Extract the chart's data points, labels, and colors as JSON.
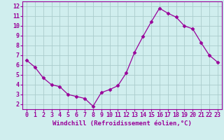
{
  "x": [
    0,
    1,
    2,
    3,
    4,
    5,
    6,
    7,
    8,
    9,
    10,
    11,
    12,
    13,
    14,
    15,
    16,
    17,
    18,
    19,
    20,
    21,
    22,
    23
  ],
  "y": [
    6.5,
    5.8,
    4.7,
    4.0,
    3.8,
    3.0,
    2.8,
    2.6,
    1.8,
    3.2,
    3.5,
    3.9,
    5.2,
    7.3,
    8.9,
    10.4,
    11.8,
    11.3,
    10.9,
    10.0,
    9.7,
    8.3,
    7.0,
    6.3
  ],
  "line_color": "#990099",
  "marker": "D",
  "marker_size": 2.5,
  "bg_color": "#d0eeee",
  "grid_color": "#aacccc",
  "xlabel": "Windchill (Refroidissement éolien,°C)",
  "xlabel_fontsize": 6.5,
  "tick_fontsize": 6.0,
  "xlim": [
    -0.5,
    23.5
  ],
  "ylim": [
    1.5,
    12.5
  ],
  "yticks": [
    2,
    3,
    4,
    5,
    6,
    7,
    8,
    9,
    10,
    11,
    12
  ],
  "xticks": [
    0,
    1,
    2,
    3,
    4,
    5,
    6,
    7,
    8,
    9,
    10,
    11,
    12,
    13,
    14,
    15,
    16,
    17,
    18,
    19,
    20,
    21,
    22,
    23
  ]
}
